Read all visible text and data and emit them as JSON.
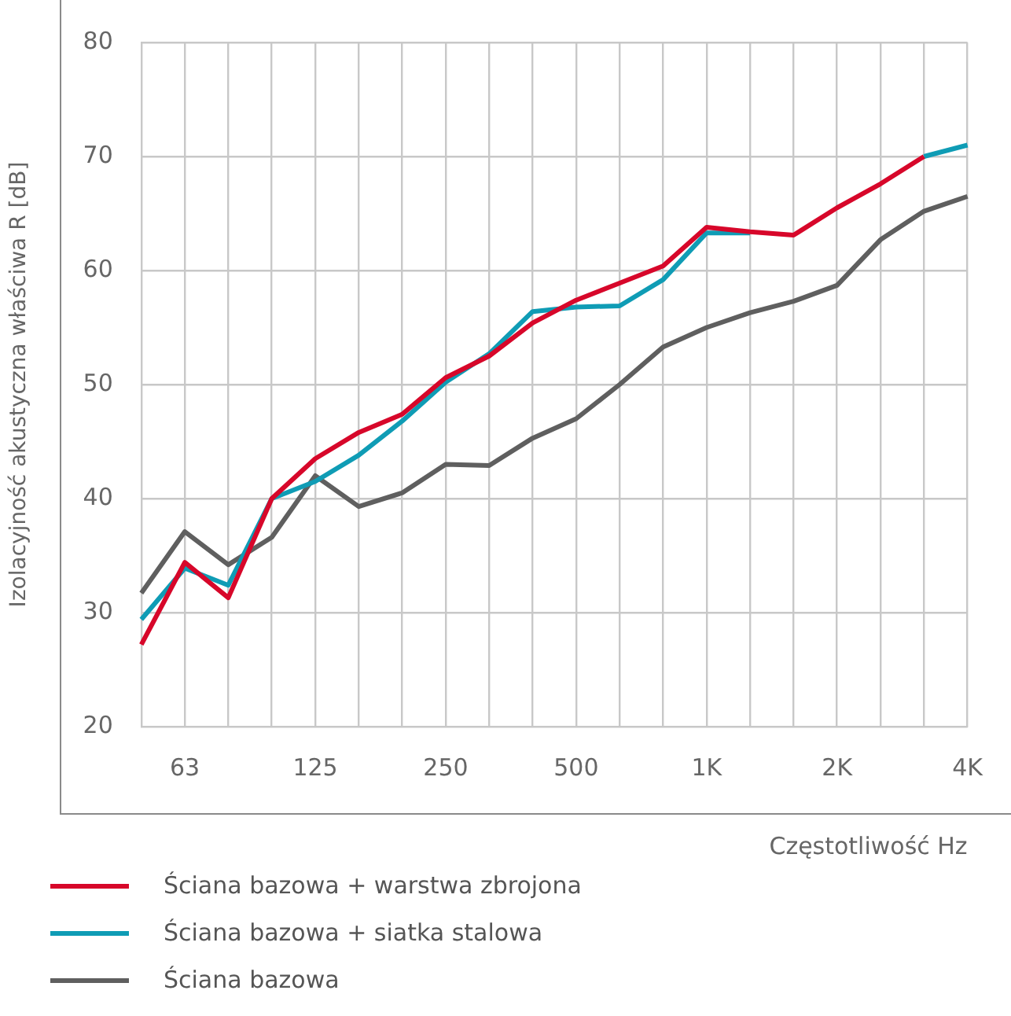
{
  "chart_data": {
    "type": "line",
    "xlabel": "Częstotliwość Hz",
    "ylabel": "Izolacyjność akustyczna właściwa R [dB]",
    "categories": [
      null,
      "63",
      null,
      null,
      "125",
      null,
      null,
      "250",
      null,
      null,
      "500",
      null,
      null,
      "1K",
      null,
      null,
      "2K",
      null,
      null,
      "4K"
    ],
    "series": [
      {
        "name": "Ściana bazowa + warstwa zbrojona",
        "color": "#d7072a",
        "values": [
          27.2,
          34.4,
          31.3,
          40.0,
          43.5,
          45.8,
          47.4,
          50.6,
          52.5,
          55.4,
          57.4,
          58.9,
          60.4,
          63.8,
          63.4,
          63.1,
          65.5,
          67.6,
          70.0,
          null
        ]
      },
      {
        "name": "Ściana bazowa + siatka stalowa",
        "color": "#0f9cb5",
        "values": [
          29.4,
          33.9,
          32.4,
          40.0,
          41.5,
          43.8,
          46.8,
          50.2,
          52.7,
          56.4,
          56.8,
          56.9,
          59.2,
          63.3,
          63.3,
          null,
          null,
          null,
          70.0,
          71.0
        ]
      },
      {
        "name": "Ściana bazowa",
        "color": "#5f5f5f",
        "values": [
          31.7,
          37.1,
          34.2,
          36.6,
          42.0,
          39.3,
          40.5,
          43.0,
          42.9,
          45.3,
          47.0,
          50.0,
          53.3,
          55.0,
          56.3,
          57.3,
          58.7,
          62.7,
          65.2,
          66.5
        ]
      }
    ],
    "ylim": [
      20,
      80
    ],
    "yticks": [
      20,
      30,
      40,
      50,
      60,
      70,
      80
    ],
    "grid": true,
    "legend": "bottom",
    "marker": "none",
    "line_style": "solid"
  }
}
